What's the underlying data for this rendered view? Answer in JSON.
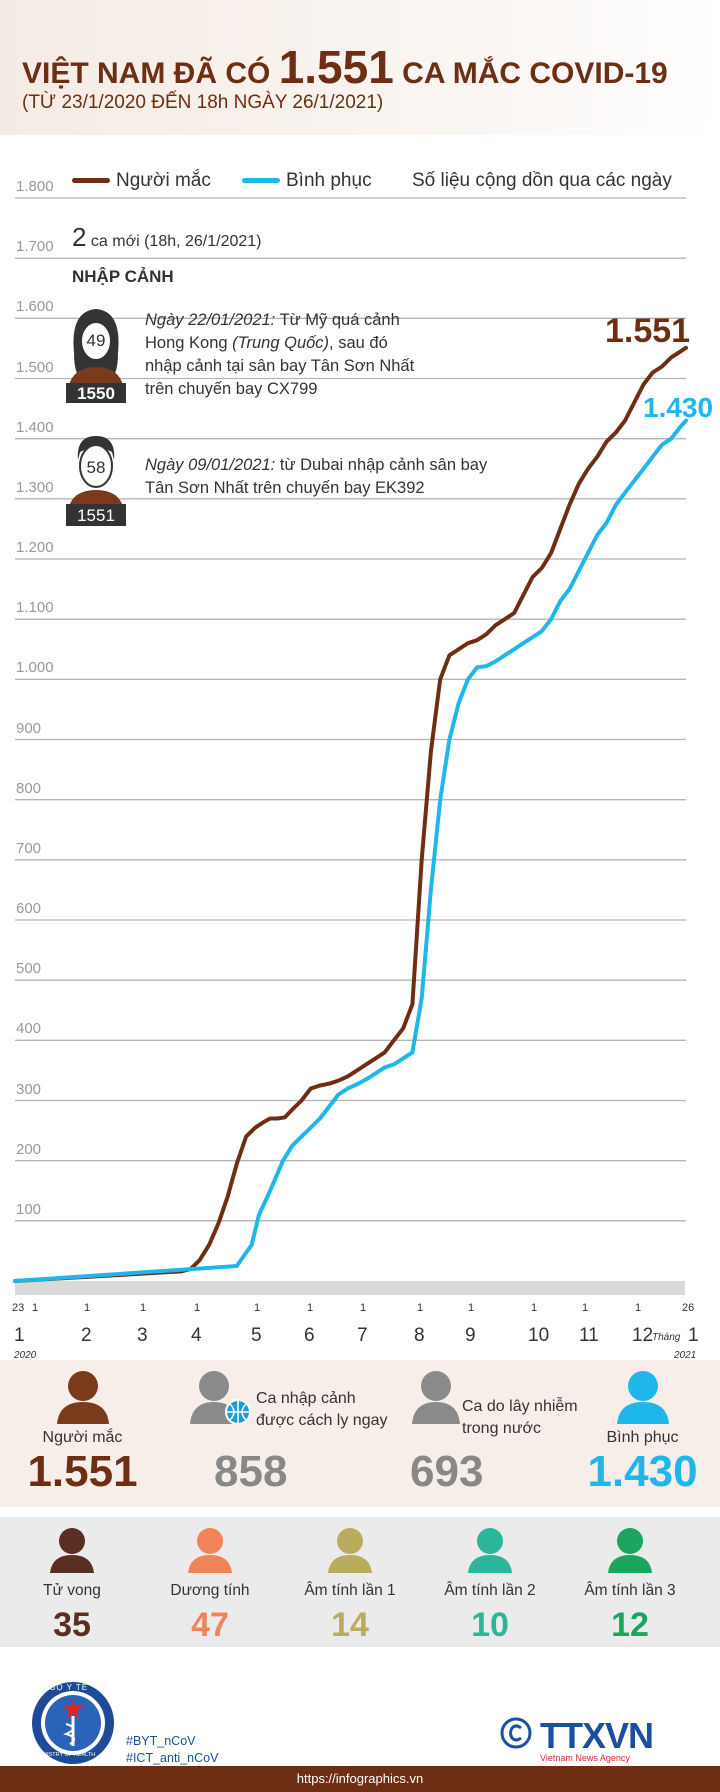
{
  "title": {
    "pre": "VIỆT NAM ĐÃ CÓ",
    "number": "1.551",
    "post": "CA MẮC COVID-19",
    "subtitle": "(TỪ 23/1/2020 ĐẾN 18h NGÀY 26/1/2021)"
  },
  "legend": {
    "cases": "Người mắc",
    "recovered": "Bình phục",
    "note": "Số liệu cộng dồn qua các ngày"
  },
  "new_cases": {
    "count": "2",
    "text": "ca mới (18h, 26/1/2021)"
  },
  "entry_label": "NHẬP CẢNH",
  "cases_detail": [
    {
      "age": "49",
      "patient": "1550",
      "date": "Ngày 22/01/2021:",
      "text1": " Từ Mỹ quá cảnh",
      "text2": "Hong Kong ",
      "text2i": "(Trung Quốc)",
      "text3": ", sau đó",
      "text4": "nhập cảnh tại sân bay Tân Sơn Nhất",
      "text5": "trên chuyến bay CX799"
    },
    {
      "age": "58",
      "patient": "1551",
      "date": "Ngày 09/01/2021:",
      "text1": " từ Dubai nhập cảnh sân bay",
      "text4": "Tân Sơn Nhất trên chuyến bay EK392"
    }
  ],
  "end_labels": {
    "cases": "1.551",
    "recovered": "1.430"
  },
  "x_axis": {
    "start_day": "23",
    "start_month": "1",
    "start_year": "2020",
    "months": [
      "2",
      "3",
      "4",
      "5",
      "6",
      "7",
      "8",
      "9",
      "10",
      "11",
      "12"
    ],
    "end_label": "Tháng",
    "end_month": "1",
    "end_day": "26",
    "end_year": "2021",
    "day_tick": "1"
  },
  "chart_data": {
    "type": "line",
    "ylim": [
      0,
      1800
    ],
    "yticks": [
      "100",
      "200",
      "300",
      "400",
      "500",
      "600",
      "700",
      "800",
      "900",
      "1.000",
      "1.100",
      "1.200",
      "1.300",
      "1.400",
      "1.500",
      "1.600",
      "1.700",
      "1.800"
    ],
    "series": [
      {
        "name": "Người mắc",
        "color": "#6e2e13",
        "x": [
          0,
          9,
          9.5,
          10,
          10.5,
          11,
          11.5,
          12,
          12.5,
          13,
          13.5,
          13.8,
          14.2,
          14.6,
          15,
          15.5,
          16,
          16.5,
          17,
          17.5,
          18,
          18.5,
          19,
          19.5,
          20,
          20.5,
          21,
          21.5,
          22,
          22.5,
          23,
          23.5,
          24,
          24.5,
          25,
          25.5,
          26,
          26.5,
          27,
          27.5,
          28,
          28.5,
          29,
          29.5,
          30,
          30.5,
          31,
          31.5,
          32,
          32.5,
          33,
          33.5,
          34,
          34.5,
          35,
          35.5,
          36,
          36.3
        ],
        "y": [
          0,
          16,
          20,
          35,
          60,
          95,
          140,
          195,
          240,
          255,
          265,
          270,
          270,
          272,
          285,
          300,
          320,
          325,
          328,
          333,
          340,
          350,
          360,
          370,
          380,
          400,
          420,
          460,
          700,
          880,
          1000,
          1040,
          1050,
          1060,
          1065,
          1075,
          1090,
          1100,
          1110,
          1140,
          1170,
          1185,
          1210,
          1250,
          1290,
          1325,
          1350,
          1370,
          1395,
          1410,
          1430,
          1460,
          1490,
          1510,
          1520,
          1535,
          1545,
          1551
        ]
      },
      {
        "name": "Bình phục",
        "color": "#1fb6ea",
        "x": [
          0,
          12,
          12.8,
          13.2,
          13.8,
          14.5,
          15,
          15.5,
          16,
          16.5,
          17,
          17.5,
          18,
          18.5,
          19,
          19.5,
          20,
          20.5,
          21,
          21.5,
          22,
          22.5,
          23,
          23.5,
          24,
          24.5,
          25,
          25.5,
          26,
          26.5,
          27,
          27.5,
          28,
          28.5,
          29,
          29.5,
          30,
          30.5,
          31,
          31.5,
          32,
          32.5,
          33,
          33.5,
          34,
          34.5,
          35,
          35.5,
          36,
          36.3
        ],
        "y": [
          0,
          25,
          60,
          110,
          150,
          200,
          225,
          240,
          255,
          270,
          290,
          310,
          320,
          327,
          335,
          345,
          355,
          360,
          370,
          380,
          470,
          650,
          800,
          900,
          960,
          1000,
          1020,
          1022,
          1030,
          1040,
          1050,
          1060,
          1070,
          1080,
          1100,
          1130,
          1150,
          1180,
          1210,
          1240,
          1260,
          1290,
          1310,
          1330,
          1350,
          1370,
          1390,
          1400,
          1420,
          1430
        ]
      }
    ]
  },
  "summary": {
    "cases_label": "Người mắc",
    "cases_value": "1.551",
    "imported_label1": "Ca nhập cảnh",
    "imported_label2": "được cách ly ngay",
    "imported_value": "858",
    "local_label1": "Ca do lây nhiễm",
    "local_label2": "trong nước",
    "local_value": "693",
    "recovered_label": "Bình phục",
    "recovered_value": "1.430"
  },
  "status": [
    {
      "label": "Tử vong",
      "value": "35",
      "color": "#5a2e22"
    },
    {
      "label": "Dương tính",
      "value": "47",
      "color": "#f08458"
    },
    {
      "label": "Âm tính lần 1",
      "value": "14",
      "color": "#b9ad5d"
    },
    {
      "label": "Âm tính lần 2",
      "value": "10",
      "color": "#2bb59a"
    },
    {
      "label": "Âm tính lần 3",
      "value": "12",
      "color": "#1aa65e"
    }
  ],
  "footer": {
    "tag1": "#BYT_nCoV",
    "tag2": "#ICT_anti_nCoV",
    "url": "https://infographics.vn",
    "logo_text": "TTXVN",
    "logo_sub": "Vietnam News Agency",
    "ministry_text": "BỘ Y TẾ",
    "ministry_sub": "MINISTRY OF HEALTH"
  }
}
